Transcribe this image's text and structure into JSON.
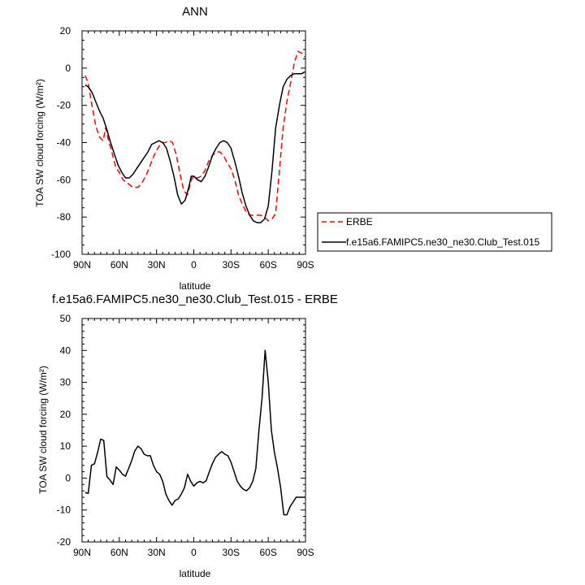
{
  "chart_data": [
    {
      "type": "line",
      "title": "ANN",
      "xlabel": "latitude",
      "ylabel": "TOA SW cloud forcing (W/m²)",
      "xlim": [
        90,
        -90
      ],
      "ylim": [
        -100,
        20
      ],
      "x_ticks": [
        90,
        60,
        30,
        0,
        -30,
        -60,
        -90
      ],
      "x_tick_labels": [
        "90N",
        "60N",
        "30N",
        "0",
        "30S",
        "60S",
        "90S"
      ],
      "y_ticks": [
        20,
        0,
        -20,
        -40,
        -60,
        -80,
        -100
      ],
      "y_tick_labels": [
        "20",
        "0",
        "-20",
        "-40",
        "-60",
        "-80",
        "-100"
      ],
      "legend_position": "right",
      "series": [
        {
          "name": "ERBE",
          "color": "#ff0000",
          "dash": "dashed",
          "x": [
            87.5,
            85,
            82,
            79,
            76,
            73,
            71,
            69,
            66,
            63,
            60,
            57,
            53,
            49,
            45,
            42,
            38,
            35,
            32,
            29,
            26,
            23,
            20,
            17,
            14,
            11,
            8,
            5,
            2,
            0,
            -3,
            -6,
            -9,
            -12,
            -15,
            -18,
            -21,
            -24,
            -27,
            -30,
            -33,
            -36,
            -39,
            -42,
            -45,
            -48,
            -51,
            -54,
            -57,
            -60,
            -63,
            -66,
            -69,
            -72,
            -75,
            -78,
            -81,
            -84,
            -87,
            -89.5
          ],
          "y": [
            -4,
            -8,
            -20,
            -31,
            -37,
            -39,
            -32,
            -38,
            -45,
            -53,
            -56,
            -60,
            -62,
            -64,
            -64,
            -62,
            -57,
            -52,
            -47,
            -43,
            -40,
            -40,
            -39,
            -40,
            -47,
            -57,
            -66,
            -68,
            -60,
            -58,
            -59,
            -58,
            -55,
            -50,
            -47,
            -45,
            -45,
            -47,
            -51,
            -54,
            -60,
            -68,
            -73,
            -77,
            -79,
            -79,
            -79,
            -79,
            -80,
            -82,
            -81,
            -78,
            -55,
            -32,
            -18,
            -8,
            3,
            9,
            8,
            6
          ]
        },
        {
          "name": "f.e15a6.FAMIPC5.ne30_ne30.Club_Test.015",
          "color": "#000000",
          "dash": "solid",
          "x": [
            87.5,
            85,
            82,
            79,
            76,
            73,
            70,
            67,
            64,
            61,
            58,
            55,
            52,
            49,
            46,
            43,
            40,
            37,
            34,
            31,
            28,
            25,
            22,
            19,
            16,
            13,
            10,
            7,
            4,
            2,
            0,
            -3,
            -6,
            -9,
            -12,
            -15,
            -18,
            -21,
            -24,
            -27,
            -30,
            -33,
            -36,
            -39,
            -42,
            -45,
            -48,
            -51,
            -54,
            -57,
            -60,
            -63,
            -66,
            -69,
            -72,
            -75,
            -78,
            -81,
            -84,
            -87,
            -89.5
          ],
          "y": [
            -9,
            -10,
            -13,
            -18,
            -23,
            -27,
            -33,
            -40,
            -46,
            -52,
            -56,
            -59,
            -59,
            -57,
            -54,
            -51,
            -48,
            -45,
            -41,
            -40,
            -39,
            -40,
            -43,
            -50,
            -58,
            -68,
            -73,
            -71,
            -64,
            -58,
            -58,
            -60,
            -61,
            -58,
            -53,
            -47,
            -43,
            -40,
            -39,
            -40,
            -43,
            -50,
            -58,
            -67,
            -74,
            -79,
            -82,
            -83,
            -83,
            -81,
            -74,
            -55,
            -32,
            -20,
            -10,
            -6,
            -4,
            -3,
            -3,
            -3,
            -2
          ]
        }
      ]
    },
    {
      "type": "line",
      "title": "f.e15a6.FAMIPC5.ne30_ne30.Club_Test.015 - ERBE",
      "xlabel": "latitude",
      "ylabel": "TOA SW cloud forcing (W/m²)",
      "xlim": [
        90,
        -90
      ],
      "ylim": [
        -20,
        50
      ],
      "x_ticks": [
        90,
        60,
        30,
        0,
        -30,
        -60,
        -90
      ],
      "x_tick_labels": [
        "90N",
        "60N",
        "30N",
        "0",
        "30S",
        "60S",
        "90S"
      ],
      "y_ticks": [
        50,
        40,
        30,
        20,
        10,
        0,
        -10,
        -20
      ],
      "y_tick_labels": [
        "50",
        "40",
        "30",
        "20",
        "10",
        "0",
        "-10",
        "-20"
      ],
      "series": [
        {
          "name": "",
          "color": "#000000",
          "dash": "solid",
          "x": [
            87.5,
            85,
            82.5,
            80,
            77.5,
            75,
            72.5,
            70,
            67.5,
            65,
            62.5,
            60,
            57.5,
            55,
            52.5,
            50,
            47.5,
            45,
            42.5,
            40,
            37.5,
            35,
            32.5,
            30,
            27.5,
            25,
            22.5,
            20,
            17.5,
            15,
            12.5,
            10,
            7.5,
            5,
            2.5,
            0,
            -2.5,
            -5,
            -7.5,
            -10,
            -12.5,
            -15,
            -17.5,
            -20,
            -22.5,
            -25,
            -27.5,
            -30,
            -32.5,
            -35,
            -37.5,
            -40,
            -42.5,
            -45,
            -47.5,
            -50,
            -52.5,
            -55,
            -57.5,
            -60,
            -62.5,
            -65,
            -67.5,
            -70,
            -72.5,
            -75,
            -77.5,
            -80,
            -82.5,
            -85,
            -87.5,
            -89.5
          ],
          "y": [
            -4.5,
            -4.8,
            4,
            4.5,
            8,
            12.2,
            11.8,
            0.5,
            -0.6,
            -2,
            3.5,
            2.5,
            1.2,
            0.6,
            3,
            5.5,
            8.5,
            10,
            9.2,
            7.5,
            7,
            7,
            4,
            2,
            1.2,
            -1,
            -5,
            -7,
            -8.5,
            -7,
            -6.5,
            -5,
            -3,
            1.2,
            -1,
            -2.5,
            -1.5,
            -1,
            -1.5,
            -0.8,
            2,
            4.5,
            6.5,
            7.5,
            8.3,
            7.5,
            7,
            5,
            2,
            -1,
            -2.5,
            -3.5,
            -4,
            -3,
            -1,
            3,
            15,
            25,
            40,
            30,
            15,
            8,
            3,
            -3,
            -11.5,
            -11.5,
            -9,
            -7.5,
            -6,
            -6,
            -6,
            -6
          ]
        }
      ]
    }
  ]
}
